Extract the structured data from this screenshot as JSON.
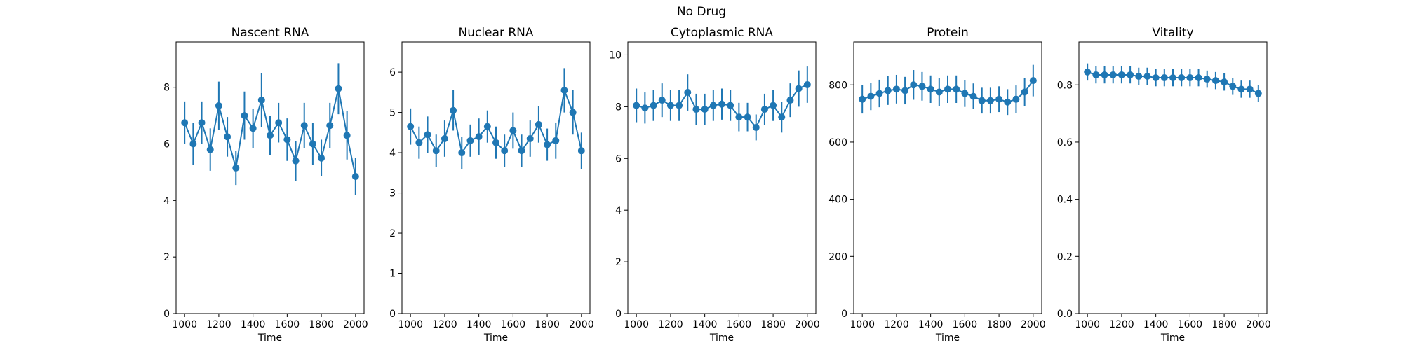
{
  "figure": {
    "title": "No Drug"
  },
  "chart_data": [
    {
      "type": "line",
      "title": "Nascent RNA",
      "xlabel": "Time",
      "ylabel": "",
      "xlim": [
        950,
        2050
      ],
      "ylim": [
        0,
        9.6
      ],
      "xticks": [
        1000,
        1200,
        1400,
        1600,
        1800,
        2000
      ],
      "yticks": [
        0,
        2,
        4,
        6,
        8
      ],
      "series": [
        {
          "color": "#1f77b4",
          "x": [
            1000,
            1050,
            1100,
            1150,
            1200,
            1250,
            1300,
            1350,
            1400,
            1450,
            1500,
            1550,
            1600,
            1650,
            1700,
            1750,
            1800,
            1850,
            1900,
            1950,
            2000
          ],
          "y": [
            6.75,
            6.0,
            6.75,
            5.8,
            7.35,
            6.25,
            5.15,
            7.0,
            6.55,
            7.55,
            6.3,
            6.75,
            6.15,
            5.4,
            6.65,
            6.0,
            5.5,
            6.65,
            7.95,
            6.3,
            4.85
          ],
          "err": [
            0.75,
            0.75,
            0.75,
            0.75,
            0.85,
            0.7,
            0.6,
            0.85,
            0.7,
            0.95,
            0.7,
            0.7,
            0.75,
            0.7,
            0.8,
            0.75,
            0.65,
            0.8,
            0.9,
            0.85,
            0.65
          ]
        }
      ]
    },
    {
      "type": "line",
      "title": "Nuclear RNA",
      "xlabel": "Time",
      "ylabel": "",
      "xlim": [
        950,
        2050
      ],
      "ylim": [
        0,
        6.75
      ],
      "xticks": [
        1000,
        1200,
        1400,
        1600,
        1800,
        2000
      ],
      "yticks": [
        0,
        1,
        2,
        3,
        4,
        5,
        6
      ],
      "series": [
        {
          "color": "#1f77b4",
          "x": [
            1000,
            1050,
            1100,
            1150,
            1200,
            1250,
            1300,
            1350,
            1400,
            1450,
            1500,
            1550,
            1600,
            1650,
            1700,
            1750,
            1800,
            1850,
            1900,
            1950,
            2000
          ],
          "y": [
            4.65,
            4.25,
            4.45,
            4.05,
            4.35,
            5.05,
            4.0,
            4.3,
            4.4,
            4.65,
            4.25,
            4.05,
            4.55,
            4.05,
            4.35,
            4.7,
            4.2,
            4.3,
            5.55,
            5.0,
            4.05
          ],
          "err": [
            0.45,
            0.4,
            0.45,
            0.4,
            0.45,
            0.5,
            0.4,
            0.4,
            0.45,
            0.4,
            0.4,
            0.4,
            0.45,
            0.4,
            0.45,
            0.45,
            0.4,
            0.45,
            0.55,
            0.55,
            0.45
          ]
        }
      ]
    },
    {
      "type": "line",
      "title": "Cytoplasmic RNA",
      "xlabel": "Time",
      "ylabel": "",
      "xlim": [
        950,
        2050
      ],
      "ylim": [
        0,
        10.5
      ],
      "xticks": [
        1000,
        1200,
        1400,
        1600,
        1800,
        2000
      ],
      "yticks": [
        0,
        2,
        4,
        6,
        8,
        10
      ],
      "series": [
        {
          "color": "#1f77b4",
          "x": [
            1000,
            1050,
            1100,
            1150,
            1200,
            1250,
            1300,
            1350,
            1400,
            1450,
            1500,
            1550,
            1600,
            1650,
            1700,
            1750,
            1800,
            1850,
            1900,
            1950,
            2000
          ],
          "y": [
            8.05,
            7.95,
            8.05,
            8.25,
            8.05,
            8.05,
            8.55,
            7.9,
            7.9,
            8.05,
            8.1,
            8.05,
            7.6,
            7.6,
            7.2,
            7.9,
            8.05,
            7.6,
            8.25,
            8.7,
            8.85
          ],
          "err": [
            0.65,
            0.6,
            0.6,
            0.65,
            0.6,
            0.6,
            0.7,
            0.6,
            0.6,
            0.6,
            0.6,
            0.6,
            0.55,
            0.55,
            0.5,
            0.6,
            0.6,
            0.6,
            0.65,
            0.7,
            0.7
          ]
        }
      ]
    },
    {
      "type": "line",
      "title": "Protein",
      "xlabel": "Time",
      "ylabel": "",
      "xlim": [
        950,
        2050
      ],
      "ylim": [
        0,
        950
      ],
      "xticks": [
        1000,
        1200,
        1400,
        1600,
        1800,
        2000
      ],
      "yticks": [
        0,
        200,
        400,
        600,
        800
      ],
      "series": [
        {
          "color": "#1f77b4",
          "x": [
            1000,
            1050,
            1100,
            1150,
            1200,
            1250,
            1300,
            1350,
            1400,
            1450,
            1500,
            1550,
            1600,
            1650,
            1700,
            1750,
            1800,
            1850,
            1900,
            1950,
            2000
          ],
          "y": [
            750,
            760,
            770,
            780,
            785,
            780,
            800,
            795,
            785,
            775,
            785,
            785,
            770,
            760,
            745,
            745,
            750,
            740,
            750,
            775,
            815
          ],
          "err": [
            50,
            48,
            48,
            50,
            50,
            48,
            52,
            50,
            48,
            48,
            48,
            48,
            47,
            45,
            45,
            45,
            45,
            45,
            48,
            50,
            55
          ]
        }
      ]
    },
    {
      "type": "line",
      "title": "Vitality",
      "xlabel": "Time",
      "ylabel": "",
      "xlim": [
        950,
        2050
      ],
      "ylim": [
        0,
        0.95
      ],
      "xticks": [
        1000,
        1200,
        1400,
        1600,
        1800,
        2000
      ],
      "yticks": [
        0.0,
        0.2,
        0.4,
        0.6,
        0.8
      ],
      "series": [
        {
          "color": "#1f77b4",
          "x": [
            1000,
            1050,
            1100,
            1150,
            1200,
            1250,
            1300,
            1350,
            1400,
            1450,
            1500,
            1550,
            1600,
            1650,
            1700,
            1750,
            1800,
            1850,
            1900,
            1950,
            2000
          ],
          "y": [
            0.845,
            0.835,
            0.835,
            0.835,
            0.835,
            0.835,
            0.83,
            0.83,
            0.825,
            0.825,
            0.825,
            0.825,
            0.825,
            0.825,
            0.82,
            0.815,
            0.81,
            0.795,
            0.785,
            0.785,
            0.77
          ],
          "err": [
            0.03,
            0.03,
            0.03,
            0.03,
            0.03,
            0.03,
            0.03,
            0.03,
            0.03,
            0.03,
            0.03,
            0.03,
            0.03,
            0.03,
            0.03,
            0.03,
            0.03,
            0.03,
            0.03,
            0.03,
            0.03
          ]
        }
      ]
    }
  ]
}
